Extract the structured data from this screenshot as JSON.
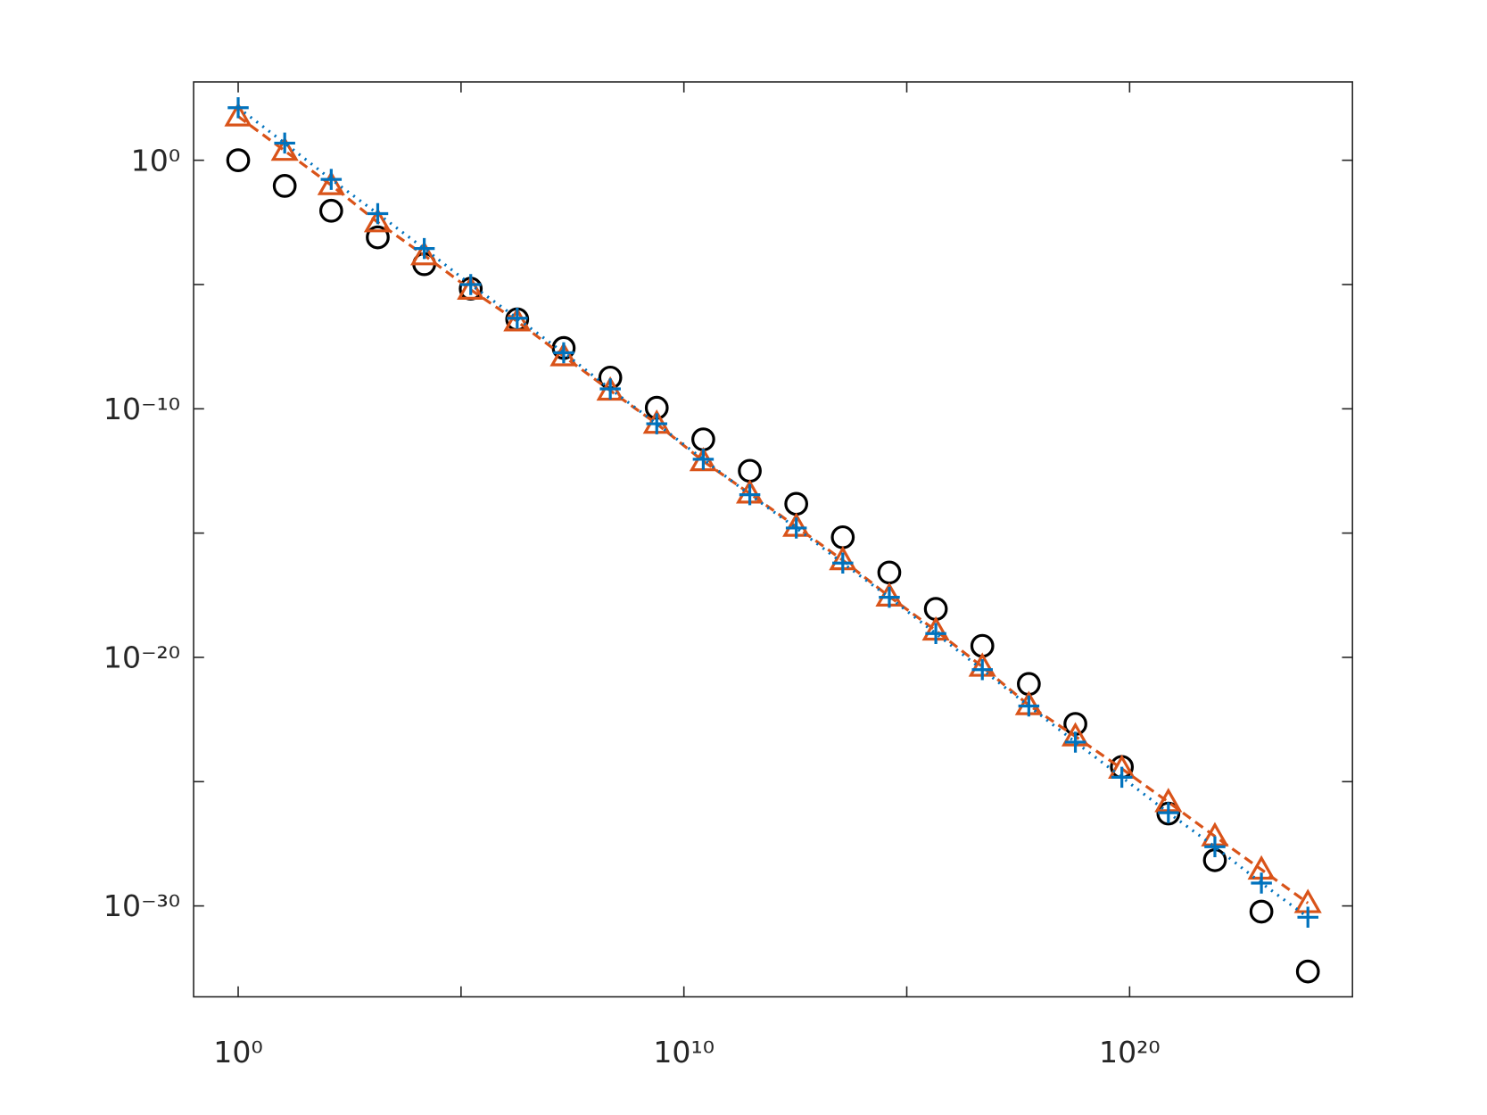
{
  "chart_data": {
    "type": "line",
    "xscale": "log",
    "yscale": "log",
    "xlim": [
      0.1,
      1e+25
    ],
    "ylim": [
      2.2e-34,
      1413
    ],
    "xticks": [
      {
        "value": 1,
        "label": "10⁰"
      },
      {
        "value": 10000000000.0,
        "label": "10¹⁰"
      },
      {
        "value": 1e+20,
        "label": "10²⁰"
      }
    ],
    "xminorticks": [
      100000.0,
      1000000000000000.0
    ],
    "yticks": [
      {
        "value": 1e-30,
        "label": "10⁻³⁰"
      },
      {
        "value": 1e-20,
        "label": "10⁻²⁰"
      },
      {
        "value": 1e-10,
        "label": "10⁻¹⁰"
      },
      {
        "value": 1,
        "label": "10⁰"
      }
    ],
    "yminorticks": [
      1e-25,
      1e-15,
      1e-05
    ],
    "x": [
      1,
      11.06,
      122.3,
      1353,
      14940,
      165000.0,
      1820000.0,
      20100000.0,
      223000000.0,
      2460000000.0,
      27200000000.0,
      301000000000.0,
      3320000000000.0,
      36700000000000.0,
      406000000000000.0,
      4490000000000000.0,
      4.96e+16,
      5.48e+17,
      6.07e+18,
      6.7e+19,
      7.41e+20,
      8.19e+21,
      9.06e+22,
      1e+24
    ],
    "series": [
      {
        "color": "#000000",
        "marker": "o",
        "linestyle": "none",
        "values": [
          1,
          0.093,
          0.0093,
          0.00079,
          6.6e-05,
          6.8e-06,
          4e-07,
          2.8e-08,
          1.8e-09,
          1.1e-10,
          5.9e-12,
          3.2e-13,
          1.5e-14,
          6.8e-16,
          2.6e-17,
          8.9e-19,
          2.9e-20,
          8.5e-22,
          2.1e-23,
          3.9e-25,
          5.2e-27,
          6.9e-29,
          5.9e-31,
          2.3e-33
        ]
      },
      {
        "color": "#D95319",
        "marker": "^",
        "linestyle": "dashed",
        "values": [
          58,
          2.4,
          0.1,
          0.0032,
          0.00015,
          6.2e-06,
          3.3e-07,
          1.3e-08,
          5.4e-10,
          2.5e-11,
          7.8e-13,
          3.9e-14,
          1.8e-15,
          8.1e-17,
          2.8e-18,
          1.2e-19,
          4.2e-21,
          1.2e-22,
          6.6e-24,
          3.3e-25,
          1.5e-26,
          6.3e-28,
          2.9e-29,
          1.3e-30
        ]
      },
      {
        "color": "#0072BD",
        "marker": "+",
        "linestyle": "dotted",
        "values": [
          130,
          4.9,
          0.17,
          0.0071,
          0.00028,
          1e-05,
          4.4e-07,
          1.8e-08,
          6.3e-10,
          2.5e-11,
          9.3e-13,
          3.5e-14,
          1.6e-15,
          6.2e-17,
          2.6e-18,
          9.1e-20,
          3.2e-21,
          1.1e-22,
          3.9e-24,
          1.5e-25,
          5.6e-27,
          2.4e-28,
          8.3e-30,
          3.5e-31
        ]
      }
    ]
  }
}
